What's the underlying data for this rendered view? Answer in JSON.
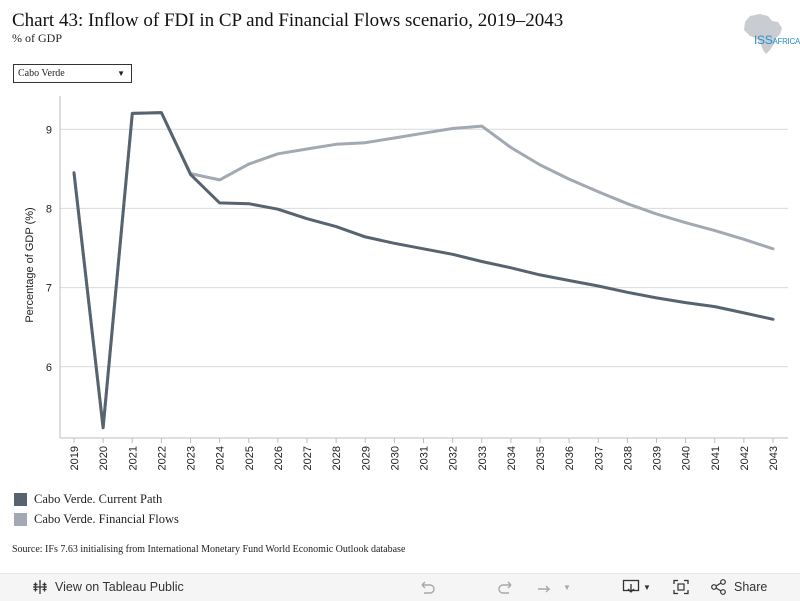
{
  "header": {
    "title": "Chart 43: Inflow of FDI in CP and Financial Flows scenario, 2019–2043",
    "subtitle": "% of GDP",
    "logo_text_main": "ISS",
    "logo_text_sub": "AFRICA"
  },
  "filter": {
    "selected": "Cabo Verde"
  },
  "legend": [
    {
      "label": "Cabo Verde. Current Path",
      "color": "#586370"
    },
    {
      "label": "Cabo Verde. Financial Flows",
      "color": "#a2a9b2"
    }
  ],
  "source": "Source: IFs 7.63 initialising from International Monetary Fund World Economic Outlook database",
  "footer": {
    "view_label": "View on Tableau Public",
    "share_label": "Share"
  },
  "colors": {
    "accent": "#2a8fc7",
    "grid": "#d9d9d9"
  },
  "chart_data": {
    "type": "line",
    "title": "Chart 43: Inflow of FDI in CP and Financial Flows scenario, 2019–2043",
    "ylabel": "Percentage of GDP (%)",
    "xlabel": "",
    "ylim": [
      5.1,
      9.42
    ],
    "yticks": [
      6,
      7,
      8,
      9
    ],
    "grid": true,
    "legend_position": "bottom-left",
    "x": [
      "2019",
      "2020",
      "2021",
      "2022",
      "2023",
      "2024",
      "2025",
      "2026",
      "2027",
      "2028",
      "2029",
      "2030",
      "2031",
      "2032",
      "2033",
      "2034",
      "2035",
      "2036",
      "2037",
      "2038",
      "2039",
      "2040",
      "2041",
      "2042",
      "2043"
    ],
    "series": [
      {
        "name": "Cabo Verde. Current Path",
        "color": "#586370",
        "values": [
          8.45,
          5.23,
          9.2,
          9.21,
          8.43,
          8.07,
          8.06,
          7.99,
          7.87,
          7.77,
          7.64,
          7.56,
          7.49,
          7.42,
          7.33,
          7.25,
          7.16,
          7.09,
          7.02,
          6.94,
          6.87,
          6.81,
          6.76,
          6.68,
          6.6
        ]
      },
      {
        "name": "Cabo Verde. Financial Flows",
        "color": "#a2a9b2",
        "values": [
          8.45,
          5.23,
          9.2,
          9.21,
          8.44,
          8.36,
          8.56,
          8.69,
          8.75,
          8.81,
          8.83,
          8.89,
          8.95,
          9.01,
          9.04,
          8.77,
          8.55,
          8.37,
          8.21,
          8.06,
          7.93,
          7.82,
          7.72,
          7.61,
          7.49
        ]
      }
    ]
  }
}
